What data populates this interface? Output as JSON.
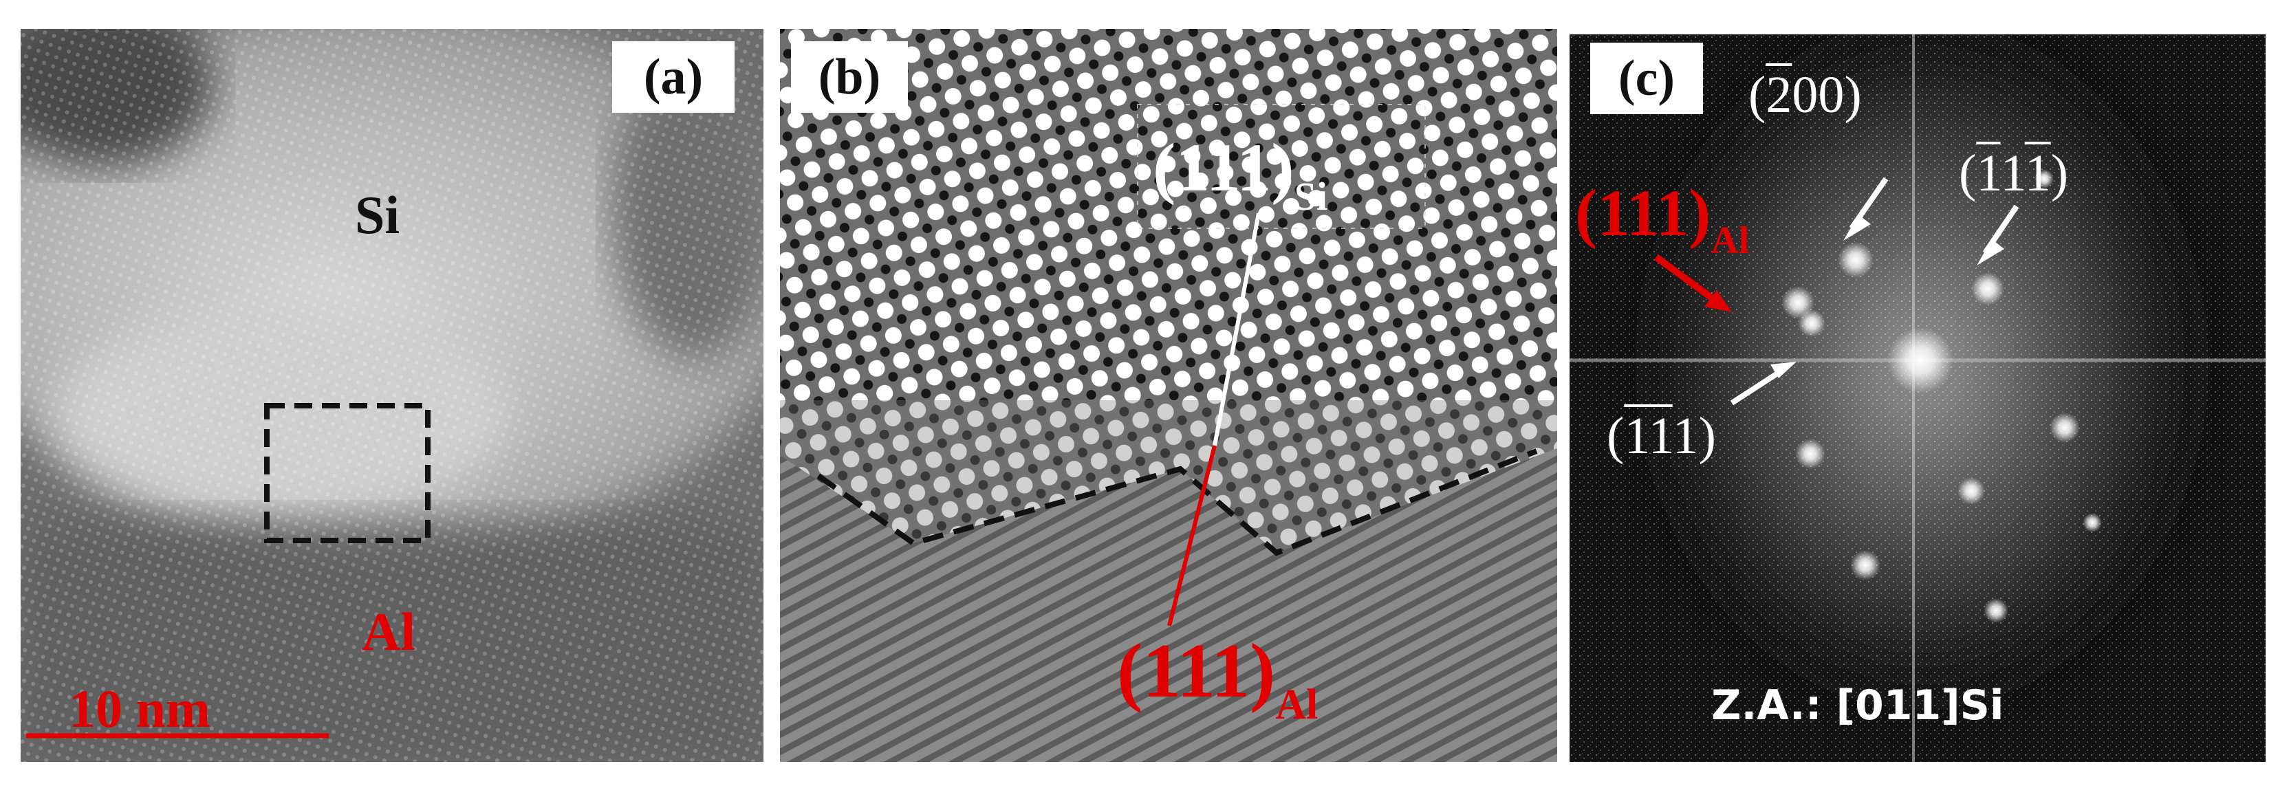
{
  "panels": {
    "a": {
      "tag": "(a)",
      "label_top": "Si",
      "label_bottom": "Al",
      "scalebar": "10 nm",
      "colors": {
        "label_top": "#111111",
        "label_bottom": "#e00000",
        "scalebar": "#e00000",
        "roi_box": "#111111"
      }
    },
    "b": {
      "tag": "(b)",
      "plane_si": {
        "miller": "(111)",
        "sub": "Si"
      },
      "plane_al": {
        "miller": "(111)",
        "sub": "Al"
      },
      "colors": {
        "si_line": "#ffffff",
        "al_line": "#e00000",
        "interface": "#111111"
      }
    },
    "c": {
      "tag": "(c)",
      "al_spot": {
        "miller": "(111)",
        "sub": "Al"
      },
      "spot_200": {
        "open": "(",
        "bar": "2",
        "rest": "00)"
      },
      "spot_111_top": {
        "open": "(",
        "bar1": "1",
        "mid": "1",
        "bar2": "1",
        "close": ")"
      },
      "spot_111_bottom": {
        "open": "(",
        "bar": "11",
        "rest": "1)"
      },
      "zone_axis": "Z.A.: [011]Si",
      "colors": {
        "arrow_white": "#ffffff",
        "arrow_red": "#e00000"
      }
    }
  }
}
